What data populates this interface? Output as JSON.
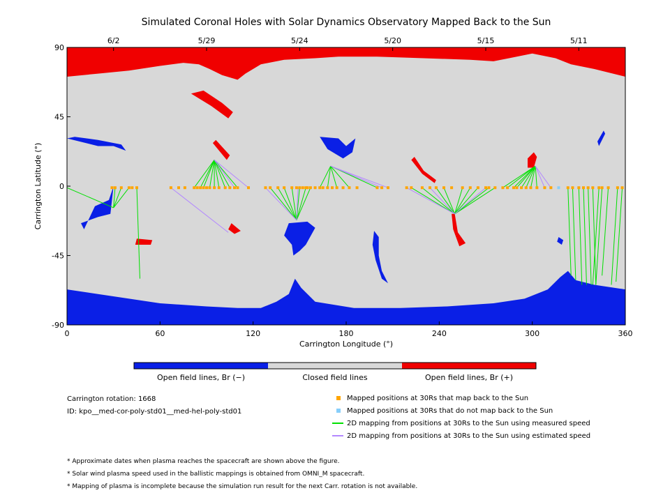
{
  "chart_data": {
    "type": "scatter",
    "title": "Simulated Coronal Holes with Solar Dynamics Observatory Mapped Back to the Sun",
    "xlabel": "Carrington Longitude (°)",
    "ylabel": "Carrington Latitude (°)",
    "xlim": [
      0,
      360
    ],
    "ylim": [
      -90,
      90
    ],
    "xticks": [
      0,
      60,
      120,
      180,
      240,
      300,
      360
    ],
    "yticks": [
      -90,
      -45,
      0,
      45,
      90
    ],
    "top_axis_dates": [
      {
        "label": "6/2",
        "lon": 30
      },
      {
        "label": "5/29",
        "lon": 90
      },
      {
        "label": "5/24",
        "lon": 150
      },
      {
        "label": "5/20",
        "lon": 210
      },
      {
        "label": "5/15",
        "lon": 270
      },
      {
        "label": "5/11",
        "lon": 330
      }
    ],
    "colors": {
      "open_neg": "#0a1fe6",
      "closed": "#d8d8d8",
      "open_pos": "#f00000",
      "mapped": "#ffa500",
      "unmapped": "#87cefa",
      "measured": "#00e000",
      "estimated": "#b388ff"
    },
    "north_polar_boundary": [
      [
        0,
        71
      ],
      [
        20,
        73
      ],
      [
        40,
        75
      ],
      [
        60,
        78
      ],
      [
        75,
        80
      ],
      [
        85,
        79
      ],
      [
        92,
        76
      ],
      [
        100,
        72
      ],
      [
        110,
        69
      ],
      [
        115,
        73
      ],
      [
        125,
        79
      ],
      [
        140,
        82
      ],
      [
        160,
        83
      ],
      [
        175,
        84
      ],
      [
        200,
        84
      ],
      [
        230,
        83
      ],
      [
        260,
        82
      ],
      [
        275,
        81
      ],
      [
        285,
        83
      ],
      [
        300,
        86
      ],
      [
        315,
        83
      ],
      [
        325,
        79
      ],
      [
        340,
        76
      ],
      [
        360,
        71
      ]
    ],
    "south_polar_boundary": [
      [
        0,
        -67
      ],
      [
        20,
        -70
      ],
      [
        40,
        -73
      ],
      [
        60,
        -76
      ],
      [
        90,
        -78
      ],
      [
        110,
        -79
      ],
      [
        125,
        -79
      ],
      [
        135,
        -75
      ],
      [
        143,
        -70
      ],
      [
        147,
        -60
      ],
      [
        151,
        -66
      ],
      [
        160,
        -75
      ],
      [
        185,
        -79
      ],
      [
        215,
        -79
      ],
      [
        245,
        -78
      ],
      [
        275,
        -76
      ],
      [
        295,
        -73
      ],
      [
        310,
        -67
      ],
      [
        318,
        -59
      ],
      [
        323,
        -55
      ],
      [
        328,
        -61
      ],
      [
        340,
        -64
      ],
      [
        360,
        -67
      ]
    ],
    "mapped_positions_lon": [
      29,
      31,
      35,
      40,
      42,
      45,
      67,
      72,
      76,
      82,
      84,
      86,
      88,
      90,
      92,
      95,
      98,
      102,
      105,
      108,
      110,
      117,
      128,
      131,
      136,
      140,
      145,
      148,
      150,
      152,
      154,
      155,
      157,
      160,
      163,
      165,
      168,
      171,
      174,
      178,
      182,
      187,
      200,
      203,
      207,
      219,
      222,
      229,
      234,
      238,
      243,
      248,
      255,
      260,
      265,
      270,
      272,
      276,
      281,
      284,
      288,
      290,
      293,
      296,
      299,
      303,
      308,
      312,
      323,
      326,
      330,
      333,
      336,
      339,
      343,
      345,
      349,
      355,
      358
    ],
    "unmapped_positions_lon": [
      317
    ],
    "foot_points": [
      {
        "lon": 30,
        "lat": -14
      },
      {
        "lon": 95,
        "lat": 17
      },
      {
        "lon": 148,
        "lat": -22
      },
      {
        "lon": 170,
        "lat": 13
      },
      {
        "lon": 250,
        "lat": -18
      },
      {
        "lon": 302,
        "lat": 13
      }
    ],
    "measured_links": [
      [
        31,
        -14
      ],
      [
        35,
        -14
      ],
      [
        40,
        -14
      ],
      [
        0,
        -5
      ],
      [
        45,
        -60
      ],
      [
        82,
        17
      ],
      [
        86,
        17
      ],
      [
        88,
        17
      ],
      [
        92,
        17
      ],
      [
        95,
        17
      ],
      [
        98,
        17
      ],
      [
        102,
        17
      ],
      [
        105,
        17
      ],
      [
        110,
        17
      ],
      [
        131,
        -22
      ],
      [
        136,
        -22
      ],
      [
        140,
        -22
      ],
      [
        145,
        -22
      ],
      [
        150,
        -22
      ],
      [
        154,
        -22
      ],
      [
        157,
        -22
      ],
      [
        163,
        -22
      ],
      [
        168,
        -22
      ],
      [
        174,
        -22
      ],
      [
        182,
        -22
      ],
      [
        200,
        13
      ],
      [
        222,
        -18
      ],
      [
        229,
        -18
      ],
      [
        238,
        -18
      ],
      [
        243,
        -18
      ],
      [
        255,
        -18
      ],
      [
        260,
        -18
      ],
      [
        265,
        -18
      ],
      [
        272,
        13
      ],
      [
        276,
        13
      ],
      [
        281,
        13
      ],
      [
        284,
        13
      ],
      [
        288,
        13
      ],
      [
        290,
        13
      ],
      [
        293,
        13
      ],
      [
        296,
        13
      ],
      [
        299,
        13
      ],
      [
        303,
        13
      ],
      [
        323,
        -58
      ],
      [
        326,
        -61
      ],
      [
        330,
        -64
      ],
      [
        333,
        -64
      ],
      [
        336,
        -64
      ],
      [
        339,
        -64
      ],
      [
        343,
        -64
      ],
      [
        345,
        -64
      ],
      [
        349,
        -58
      ],
      [
        355,
        -64
      ],
      [
        358,
        -62
      ]
    ],
    "estimated_links": [
      [
        67,
        -1
      ],
      [
        108,
        17
      ],
      [
        117,
        17
      ],
      [
        128,
        -22
      ],
      [
        149,
        -22
      ],
      [
        203,
        13
      ],
      [
        207,
        13
      ],
      [
        219,
        -18
      ],
      [
        234,
        -18
      ],
      [
        270,
        13
      ],
      [
        308,
        13
      ],
      [
        312,
        13
      ]
    ]
  },
  "colorbar": {
    "labels": [
      "Open field lines, Br (−)",
      "Closed field lines",
      "Open field lines, Br (+)"
    ]
  },
  "info": {
    "rotation": "Carrington rotation: 1668",
    "id": "ID: kpo__med-cor-poly-std01__med-hel-poly-std01"
  },
  "legend": [
    {
      "label": "Mapped positions at 30Rs that map back to the Sun",
      "kind": "square",
      "color": "#ffa500"
    },
    {
      "label": "Mapped positions at 30Rs that do not map back to the Sun",
      "kind": "square",
      "color": "#87cefa"
    },
    {
      "label": "2D mapping from positions at 30Rs to the Sun using measured speed",
      "kind": "line",
      "color": "#00e000"
    },
    {
      "label": "2D mapping from positions at 30Rs to the Sun using estimated speed",
      "kind": "line",
      "color": "#b388ff"
    }
  ],
  "footnotes": [
    "* Approximate dates when plasma reaches the spacecraft are shown above the figure.",
    "* Solar wind plasma speed used in the ballistic mappings is obtained from OMNI_M spacecraft.",
    "* Mapping of plasma is incomplete because the simulation run result for the next Carr. rotation is not available."
  ]
}
